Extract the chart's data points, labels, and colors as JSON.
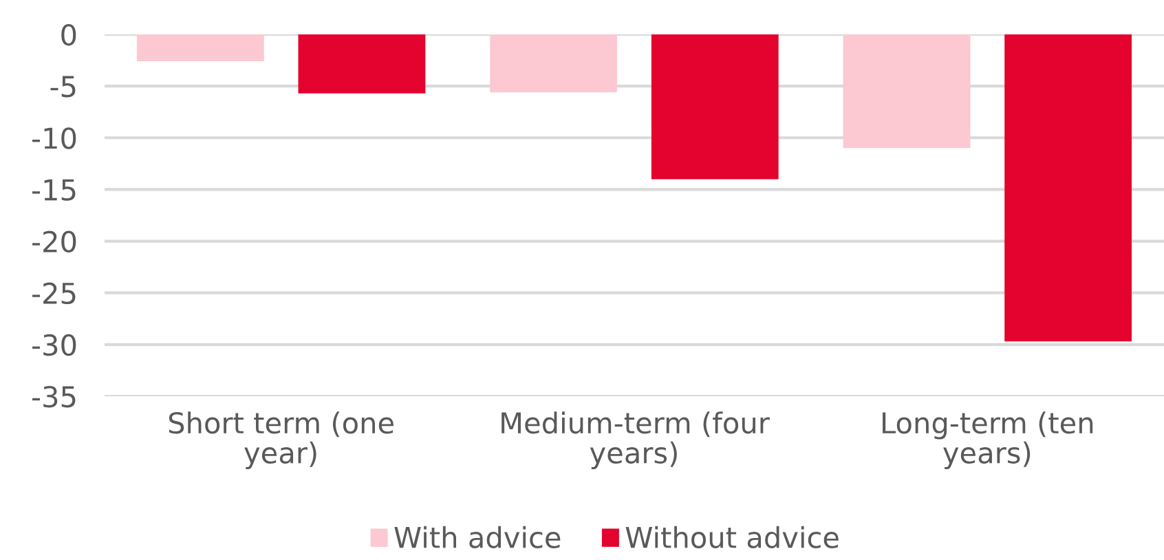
{
  "chart_data": {
    "type": "bar",
    "categories": [
      "Short term (one\nyear)",
      "Medium-term (four\nyears)",
      "Long-term (ten\nyears)"
    ],
    "series": [
      {
        "name": "With advice",
        "color": "#fcc8d1",
        "values": [
          -2.6,
          -5.6,
          -11.0
        ]
      },
      {
        "name": "Without advice",
        "color": "#e4032e",
        "values": [
          -5.7,
          -14.0,
          -29.7
        ]
      }
    ],
    "ylim": [
      -35,
      0
    ],
    "yticks": [
      0,
      -5,
      -10,
      -15,
      -20,
      -25,
      -30,
      -35
    ],
    "grid": "y",
    "legend": "bottom"
  }
}
